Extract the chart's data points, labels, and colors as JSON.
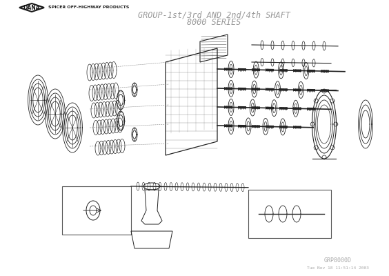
{
  "title_line1": "GROUP-1st/3rd AND 2nd/4th SHAFT",
  "title_line2": "8000 SERIES",
  "title_color": "#999999",
  "title_fontsize": 8.5,
  "background_color": "#ffffff",
  "logo_text": "DANA",
  "logo_subtitle": "SPICER OFF-HIGHWAY PRODUCTS",
  "logo_color": "#1a1a1a",
  "drawing_code": "GRP8000D",
  "drawing_code_color": "#aaaaaa",
  "drawing_code_fontsize": 6,
  "footer_text": "Tue Nov 18 11:51:14 2003",
  "footer_color": "#aaaaaa",
  "footer_fontsize": 4.5,
  "border_color": "#cccccc",
  "line_color": "#222222",
  "component_color": "#333333",
  "bg_white": "#ffffff",
  "figure_width": 5.64,
  "figure_height": 4.0
}
